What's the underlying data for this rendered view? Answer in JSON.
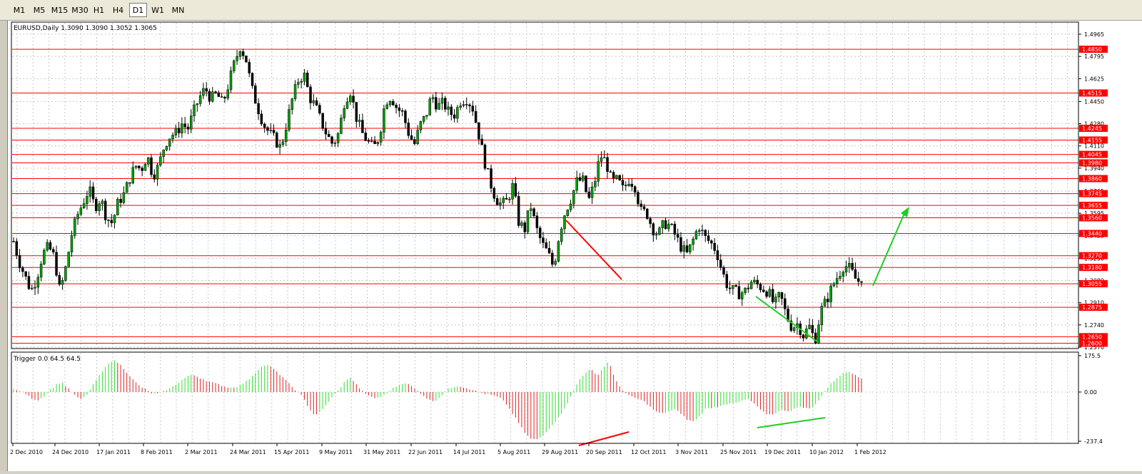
{
  "toolbar": {
    "timeframes": [
      "M1",
      "M5",
      "M15",
      "M30",
      "H1",
      "H4",
      "D1",
      "W1",
      "MN"
    ],
    "active": "D1"
  },
  "main_chart": {
    "header": "EURUSD,Daily  1.3090 1.3090 1.3052 1.3065",
    "price_scale": [
      "1.4965",
      "1.4795",
      "1.4625",
      "1.4450",
      "1.4280",
      "1.4110",
      "1.3940",
      "1.3765",
      "1.3595",
      "1.3425",
      "1.3250",
      "1.3080",
      "1.2910",
      "1.2740",
      "1.2570"
    ],
    "levels": [
      {
        "price": "1.4850",
        "value": 1.485
      },
      {
        "price": "1.4515",
        "value": 1.4515
      },
      {
        "price": "1.4245",
        "value": 1.4245
      },
      {
        "price": "1.4155",
        "value": 1.4155
      },
      {
        "price": "1.4045",
        "value": 1.4045
      },
      {
        "price": "1.3980",
        "value": 1.398
      },
      {
        "price": "1.3860",
        "value": 1.386
      },
      {
        "price": "1.3745",
        "value": 1.3745
      },
      {
        "price": "1.3655",
        "value": 1.3655
      },
      {
        "price": "1.3560",
        "value": 1.356
      },
      {
        "price": "1.3440",
        "value": 1.344
      },
      {
        "price": "1.3270",
        "value": 1.327
      },
      {
        "price": "1.3180",
        "value": 1.318
      },
      {
        "price": "1.3055",
        "value": 1.3055
      },
      {
        "price": "1.2875",
        "value": 1.2875
      },
      {
        "price": "1.2650",
        "value": 1.265
      },
      {
        "price": "1.2600",
        "value": 1.26
      }
    ],
    "level_color": "#ff0000",
    "bull_color": "#00a000",
    "bear_color": "#000000",
    "price_path": [
      1.338,
      1.322,
      1.311,
      1.3,
      1.31,
      1.328,
      1.334,
      1.326,
      1.299,
      1.318,
      1.343,
      1.358,
      1.368,
      1.378,
      1.364,
      1.371,
      1.356,
      1.352,
      1.368,
      1.374,
      1.386,
      1.396,
      1.393,
      1.404,
      1.388,
      1.396,
      1.412,
      1.419,
      1.421,
      1.428,
      1.424,
      1.437,
      1.448,
      1.455,
      1.447,
      1.451,
      1.443,
      1.458,
      1.474,
      1.487,
      1.478,
      1.455,
      1.441,
      1.428,
      1.421,
      1.416,
      1.409,
      1.428,
      1.447,
      1.461,
      1.466,
      1.448,
      1.441,
      1.429,
      1.419,
      1.412,
      1.421,
      1.446,
      1.453,
      1.433,
      1.421,
      1.414,
      1.409,
      1.419,
      1.445,
      1.449,
      1.44,
      1.436,
      1.421,
      1.412,
      1.427,
      1.434,
      1.45,
      1.441,
      1.444,
      1.436,
      1.435,
      1.446,
      1.447,
      1.441,
      1.422,
      1.401,
      1.384,
      1.371,
      1.366,
      1.369,
      1.381,
      1.352,
      1.347,
      1.366,
      1.348,
      1.336,
      1.329,
      1.318,
      1.345,
      1.361,
      1.371,
      1.384,
      1.385,
      1.369,
      1.382,
      1.404,
      1.399,
      1.383,
      1.385,
      1.377,
      1.386,
      1.38,
      1.361,
      1.36,
      1.348,
      1.343,
      1.352,
      1.35,
      1.342,
      1.333,
      1.328,
      1.339,
      1.35,
      1.341,
      1.337,
      1.331,
      1.315,
      1.303,
      1.3,
      1.298,
      1.3,
      1.307,
      1.305,
      1.302,
      1.299,
      1.289,
      1.297,
      1.282,
      1.272,
      1.275,
      1.266,
      1.273,
      1.262,
      1.285,
      1.293,
      1.304,
      1.312,
      1.32,
      1.317,
      1.309,
      1.306
    ],
    "annotation_color_red": "#ff0000",
    "annotation_color_green": "#22cc22"
  },
  "date_axis": {
    "labels": [
      "2 Dec 2010",
      "24 Dec 2010",
      "17 Jan 2011",
      "8 Feb 2011",
      "2 Mar 2011",
      "24 Mar 2011",
      "15 Apr 2011",
      "9 May 2011",
      "31 May 2011",
      "22 Jun 2011",
      "14 Jul 2011",
      "5 Aug 2011",
      "29 Aug 2011",
      "20 Sep 2011",
      "12 Oct 2011",
      "3 Nov 2011",
      "25 Nov 2011",
      "19 Dec 2011",
      "10 Jan 2012",
      "1 Feb 2012"
    ]
  },
  "indicator": {
    "header": "Trigger 0.0 64.5 64.5",
    "scale": [
      "175.5",
      "0.00",
      "-237.4"
    ],
    "max": 175.5,
    "min": -237.4,
    "pos_color": "#33dd33",
    "neg_color": "#dd2222",
    "values": [
      12,
      5,
      -8,
      -30,
      -40,
      -22,
      8,
      34,
      48,
      20,
      -10,
      -36,
      -22,
      25,
      70,
      108,
      148,
      150,
      125,
      90,
      55,
      28,
      12,
      -8,
      -8,
      4,
      18,
      36,
      58,
      78,
      82,
      68,
      56,
      46,
      38,
      28,
      20,
      24,
      38,
      58,
      88,
      118,
      132,
      118,
      92,
      66,
      34,
      6,
      -20,
      -72,
      -112,
      -98,
      -62,
      -24,
      8,
      48,
      72,
      36,
      4,
      -18,
      -30,
      -24,
      -8,
      16,
      34,
      46,
      32,
      8,
      -12,
      -38,
      -44,
      -22,
      10,
      24,
      30,
      22,
      14,
      4,
      -6,
      -12,
      -18,
      -30,
      -60,
      -106,
      -150,
      -196,
      -226,
      -230,
      -212,
      -178,
      -144,
      -108,
      -60,
      -2,
      56,
      92,
      110,
      78,
      116,
      150,
      62,
      18,
      -12,
      -26,
      -34,
      -48,
      -76,
      -98,
      -104,
      -92,
      -84,
      -104,
      -134,
      -142,
      -120,
      -82,
      -76,
      -72,
      -60,
      -58,
      -54,
      -44,
      -34,
      -50,
      -82,
      -104,
      -110,
      -96,
      -86,
      -94,
      -78,
      -70,
      -80,
      -74,
      -34,
      8,
      44,
      70,
      92,
      98,
      84,
      64
    ]
  }
}
